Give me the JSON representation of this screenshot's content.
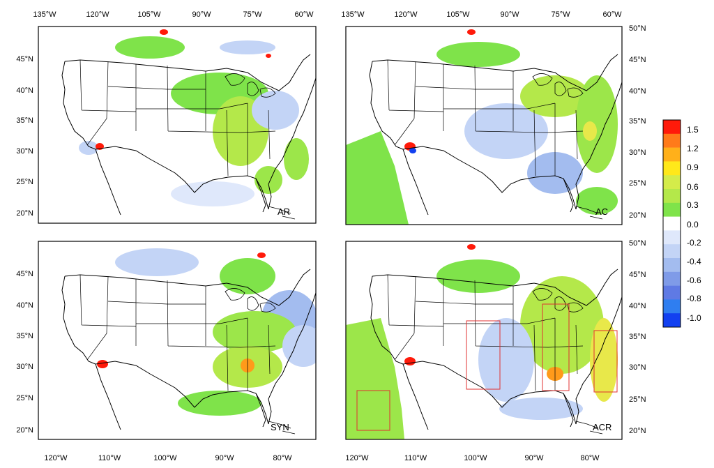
{
  "colors": {
    "neg_strong": "#1a1aff",
    "neg_mid": "#6f8df0",
    "neg_light": "#c6d6f6",
    "zero": "#ffffff",
    "pos_light": "#9ce64a",
    "pos_mid": "#7fe34a",
    "pos_yellow": "#e8e84a",
    "pos_orange": "#ff9a1a",
    "pos_red": "#ff1a0a",
    "box": "#e03030",
    "coast": "#000000"
  },
  "panels": [
    {
      "id": "AR",
      "label": "AR",
      "top_lon_ticks": [
        "135°W",
        "120°W",
        "105°W",
        "90°W",
        "75°W",
        "60°W"
      ],
      "left_lat_ticks": [
        "45°N",
        "40°N",
        "35°N",
        "30°N",
        "25°N",
        "20°N"
      ]
    },
    {
      "id": "AC",
      "label": "AC",
      "top_lon_ticks": [
        "135°W",
        "120°W",
        "105°W",
        "90°W",
        "75°W",
        "60°W"
      ],
      "right_lat_ticks": [
        "50°N",
        "45°N",
        "40°N",
        "35°N",
        "30°N",
        "25°N",
        "20°N"
      ]
    },
    {
      "id": "SYN",
      "label": "SYN",
      "bottom_lon_ticks": [
        "120°W",
        "110°W",
        "100°W",
        "90°W",
        "80°W"
      ],
      "left_lat_ticks": [
        "45°N",
        "40°N",
        "35°N",
        "30°N",
        "25°N",
        "20°N"
      ]
    },
    {
      "id": "ACR",
      "label": "ACR",
      "bottom_lon_ticks": [
        "120°W",
        "110°W",
        "100°W",
        "90°W",
        "80°W"
      ],
      "right_lat_ticks": [
        "50°N",
        "45°N",
        "40°N",
        "35°N",
        "30°N",
        "25°N",
        "20°N"
      ]
    }
  ],
  "colorbar": {
    "labels": [
      "1.5",
      "1.2",
      "0.9",
      "0.6",
      "0.3",
      "0.0",
      "-0.2",
      "-0.4",
      "-0.6",
      "-0.8",
      "-1.0"
    ],
    "colors": [
      "#ff1a0a",
      "#ff7a1a",
      "#ffb01a",
      "#ffe81a",
      "#d4ec4a",
      "#b4e84a",
      "#7fe34a",
      "#ffffff",
      "#dfe8fb",
      "#c3d4f6",
      "#a3bcef",
      "#7f9be8",
      "#5f7ae4",
      "#2f7ef0",
      "#1240f0"
    ]
  }
}
